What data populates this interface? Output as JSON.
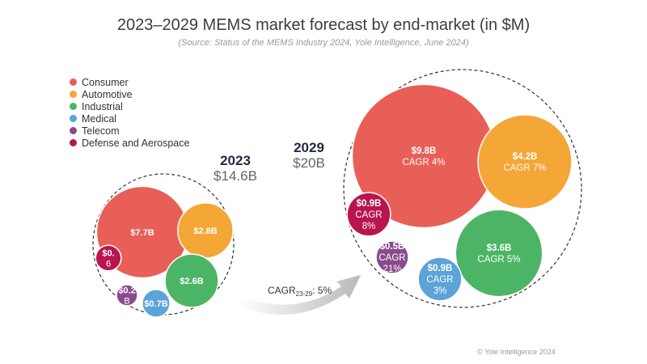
{
  "title": "2023–2029 MEMS market forecast by end-market (in $M)",
  "subtitle": "(Source: Status of the MEMS Industry 2024, Yole Intelligence, June 2024)",
  "copyright": "© Yole Intelligence 2024",
  "legend": [
    {
      "label": "Consumer",
      "color": "#e85f58"
    },
    {
      "label": "Automotive",
      "color": "#f4a636"
    },
    {
      "label": "Industrial",
      "color": "#4cb565"
    },
    {
      "label": "Medical",
      "color": "#5ba3d8"
    },
    {
      "label": "Telecom",
      "color": "#8a4a8c"
    },
    {
      "label": "Defense and Aerospace",
      "color": "#b8154f"
    }
  ],
  "cagr_arrow": {
    "prefix": "CAGR",
    "sub": "23-29",
    "suffix": ": 5%"
  },
  "chart_data": {
    "type": "bubble",
    "title": "2023–2029 MEMS market forecast by end-market (in $M)",
    "groups": [
      {
        "year": "2023",
        "total_label": "$14.6B",
        "total": 14.6,
        "bubbles": [
          {
            "segment": "Consumer",
            "value": 7.7,
            "lines": [
              "$7.7B"
            ]
          },
          {
            "segment": "Automotive",
            "value": 2.8,
            "lines": [
              "$2.8B"
            ]
          },
          {
            "segment": "Industrial",
            "value": 2.6,
            "lines": [
              "$2.6B"
            ]
          },
          {
            "segment": "Medical",
            "value": 0.7,
            "lines": [
              "$0.7B"
            ]
          },
          {
            "segment": "Telecom",
            "value": 0.2,
            "lines": [
              "$0.2",
              "B"
            ]
          },
          {
            "segment": "Defense and Aerospace",
            "value": 0.6,
            "lines": [
              "$0.",
              "6"
            ]
          }
        ]
      },
      {
        "year": "2029",
        "total_label": "$20B",
        "total": 20,
        "bubbles": [
          {
            "segment": "Consumer",
            "value": 9.8,
            "cagr": "4%",
            "lines": [
              "$9.8B",
              "CAGR 4%"
            ]
          },
          {
            "segment": "Automotive",
            "value": 4.2,
            "cagr": "7%",
            "lines": [
              "$4.2B",
              "CAGR 7%"
            ]
          },
          {
            "segment": "Industrial",
            "value": 3.6,
            "cagr": "5%",
            "lines": [
              "$3.6B",
              "CAGR 5%"
            ]
          },
          {
            "segment": "Medical",
            "value": 0.9,
            "cagr": "3%",
            "lines": [
              "$0.9B",
              "CAGR",
              "3%"
            ]
          },
          {
            "segment": "Telecom",
            "value": 0.5,
            "cagr": "21%",
            "lines": [
              "$0.5B",
              "CAGR",
              "21%"
            ]
          },
          {
            "segment": "Defense and Aerospace",
            "value": 0.9,
            "cagr": "8%",
            "lines": [
              "$0.9B",
              "CAGR",
              "8%"
            ]
          }
        ]
      }
    ]
  }
}
